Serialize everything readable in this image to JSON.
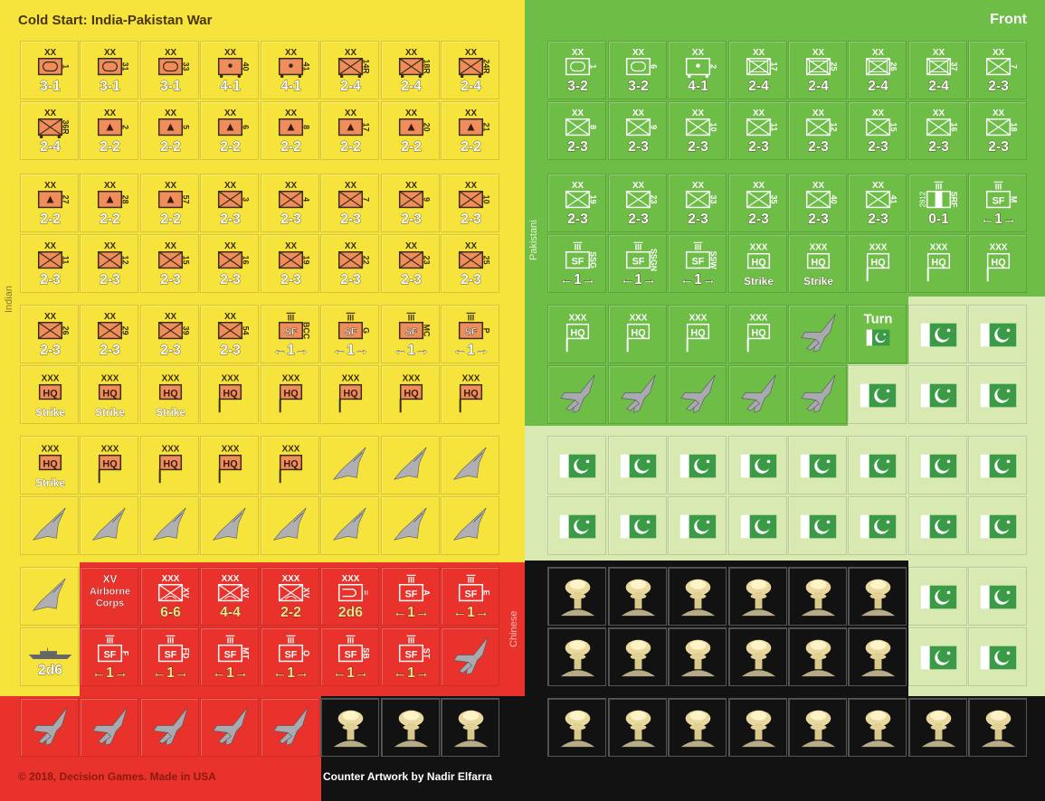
{
  "sheet": {
    "title": "Cold Start: India-Pakistan War",
    "side_label": "Front",
    "indian_label": "Indian",
    "pakistani_label": "Pakistani",
    "chinese_label": "Chinese",
    "copyright": "© 2018, Decision Games. Made in USA",
    "credit": "Counter Artwork by Nadir Elfarra"
  },
  "colors": {
    "india": "#f6e43c",
    "china": "#e8322b",
    "pakistan": "#6dbd47",
    "pakistan_light": "#d8e9b2",
    "nuke": "#121212",
    "india_symbol": "#ef8d5d",
    "ink": "#3a2a10",
    "china_strength": "#f7e18e"
  },
  "left_rows": [
    [
      {
        "s": "XX",
        "sym": "armor",
        "id": "1",
        "str": "3-1"
      },
      {
        "s": "XX",
        "sym": "armor",
        "id": "31",
        "str": "3-1"
      },
      {
        "s": "XX",
        "sym": "armor",
        "id": "33",
        "str": "3-1"
      },
      {
        "s": "XX",
        "sym": "motart",
        "id": "40",
        "str": "4-1"
      },
      {
        "s": "XX",
        "sym": "motart",
        "id": "41",
        "str": "4-1"
      },
      {
        "s": "XX",
        "sym": "motinf",
        "id": "14R",
        "str": "2-4"
      },
      {
        "s": "XX",
        "sym": "motinf",
        "id": "18R",
        "str": "2-4"
      },
      {
        "s": "XX",
        "sym": "motinf",
        "id": "24R",
        "str": "2-4"
      }
    ],
    [
      {
        "s": "XX",
        "sym": "motinf",
        "id": "36R",
        "str": "2-4"
      },
      {
        "s": "XX",
        "sym": "mountain",
        "id": "2",
        "str": "2-2"
      },
      {
        "s": "XX",
        "sym": "mountain",
        "id": "5",
        "str": "2-2"
      },
      {
        "s": "XX",
        "sym": "mountain",
        "id": "6",
        "str": "2-2"
      },
      {
        "s": "XX",
        "sym": "mountain",
        "id": "8",
        "str": "2-2"
      },
      {
        "s": "XX",
        "sym": "mountain",
        "id": "17",
        "str": "2-2"
      },
      {
        "s": "XX",
        "sym": "mountain",
        "id": "20",
        "str": "2-2"
      },
      {
        "s": "XX",
        "sym": "mountain",
        "id": "21",
        "str": "2-2"
      }
    ],
    [
      {
        "s": "XX",
        "sym": "mountain",
        "id": "27",
        "str": "2-2"
      },
      {
        "s": "XX",
        "sym": "mountain",
        "id": "28",
        "str": "2-2"
      },
      {
        "s": "XX",
        "sym": "mountain",
        "id": "57",
        "str": "2-2"
      },
      {
        "s": "XX",
        "sym": "inf",
        "id": "3",
        "str": "2-3"
      },
      {
        "s": "XX",
        "sym": "inf",
        "id": "4",
        "str": "2-3"
      },
      {
        "s": "XX",
        "sym": "inf",
        "id": "7",
        "str": "2-3"
      },
      {
        "s": "XX",
        "sym": "inf",
        "id": "9",
        "str": "2-3"
      },
      {
        "s": "XX",
        "sym": "inf",
        "id": "10",
        "str": "2-3"
      }
    ],
    [
      {
        "s": "XX",
        "sym": "inf",
        "id": "11",
        "str": "2-3"
      },
      {
        "s": "XX",
        "sym": "inf",
        "id": "12",
        "str": "2-3"
      },
      {
        "s": "XX",
        "sym": "inf",
        "id": "15",
        "str": "2-3"
      },
      {
        "s": "XX",
        "sym": "inf",
        "id": "16",
        "str": "2-3"
      },
      {
        "s": "XX",
        "sym": "inf",
        "id": "19",
        "str": "2-3"
      },
      {
        "s": "XX",
        "sym": "inf",
        "id": "22",
        "str": "2-3"
      },
      {
        "s": "XX",
        "sym": "inf",
        "id": "23",
        "str": "2-3"
      },
      {
        "s": "XX",
        "sym": "inf",
        "id": "25",
        "str": "2-3"
      }
    ],
    [
      {
        "s": "XX",
        "sym": "inf",
        "id": "26",
        "str": "2-3"
      },
      {
        "s": "XX",
        "sym": "inf",
        "id": "29",
        "str": "2-3"
      },
      {
        "s": "XX",
        "sym": "inf",
        "id": "39",
        "str": "2-3"
      },
      {
        "s": "XX",
        "sym": "inf",
        "id": "54",
        "str": "2-3"
      },
      {
        "s": "III",
        "sym": "sf",
        "id": "BCC",
        "str": "←1→"
      },
      {
        "s": "III",
        "sym": "sf",
        "id": "G",
        "str": "←1→"
      },
      {
        "s": "III",
        "sym": "sf",
        "id": "MC",
        "str": "←1→"
      },
      {
        "s": "III",
        "sym": "sf",
        "id": "P",
        "str": "←1→"
      }
    ],
    [
      {
        "s": "XXX",
        "sym": "hq",
        "str": "Strike"
      },
      {
        "s": "XXX",
        "sym": "hq",
        "str": "Strike"
      },
      {
        "s": "XXX",
        "sym": "hq",
        "str": "Strike"
      },
      {
        "s": "XXX",
        "sym": "hqflag"
      },
      {
        "s": "XXX",
        "sym": "hqflag"
      },
      {
        "s": "XXX",
        "sym": "hqflag"
      },
      {
        "s": "XXX",
        "sym": "hqflag"
      },
      {
        "s": "XXX",
        "sym": "hqflag"
      }
    ],
    [
      {
        "s": "XXX",
        "sym": "hq",
        "str": "Strike"
      },
      {
        "s": "XXX",
        "sym": "hqflag"
      },
      {
        "s": "XXX",
        "sym": "hqflag"
      },
      {
        "s": "XXX",
        "sym": "hqflag"
      },
      {
        "s": "XXX",
        "sym": "hqflag"
      },
      {
        "sym": "delta"
      },
      {
        "sym": "delta"
      },
      {
        "sym": "delta"
      }
    ],
    [
      {
        "sym": "delta"
      },
      {
        "sym": "delta"
      },
      {
        "sym": "delta"
      },
      {
        "sym": "delta"
      },
      {
        "sym": "delta"
      },
      {
        "sym": "delta"
      },
      {
        "sym": "delta"
      },
      {
        "sym": "delta"
      }
    ],
    [
      {
        "sym": "delta"
      },
      {
        "side": "china",
        "sym": "label",
        "lines": [
          "XV",
          "Airborne",
          "Corps"
        ]
      },
      {
        "side": "china",
        "s": "XXX",
        "sym": "airborne",
        "id": "XV",
        "str": "6-6"
      },
      {
        "side": "china",
        "s": "XXX",
        "sym": "airborne",
        "id": "XV",
        "str": "4-4"
      },
      {
        "side": "china",
        "s": "XXX",
        "sym": "airborne",
        "id": "XV",
        "str": "2-2"
      },
      {
        "side": "china",
        "s": "XXX",
        "sym": "airmobile",
        "id": "=",
        "str": "2d6"
      },
      {
        "side": "china",
        "s": "III",
        "sym": "sf",
        "id": "A",
        "str": "←1→"
      },
      {
        "side": "china",
        "s": "III",
        "sym": "sf",
        "id": "E",
        "str": "←1→"
      }
    ],
    [
      {
        "sym": "ship",
        "str": "2d6"
      },
      {
        "side": "china",
        "s": "III",
        "sym": "sf",
        "id": "F",
        "str": "←1→"
      },
      {
        "side": "china",
        "s": "III",
        "sym": "sf",
        "id": "FD",
        "str": "←1→"
      },
      {
        "side": "china",
        "s": "III",
        "sym": "sf",
        "id": "MT",
        "str": "←1→"
      },
      {
        "side": "china",
        "s": "III",
        "sym": "sf",
        "id": "O",
        "str": "←1→"
      },
      {
        "side": "china",
        "s": "III",
        "sym": "sf",
        "id": "SB",
        "str": "←1→"
      },
      {
        "side": "china",
        "s": "III",
        "sym": "sf",
        "id": "ST",
        "str": "←1→"
      },
      {
        "side": "china",
        "sym": "jet"
      }
    ],
    [
      {
        "side": "china",
        "sym": "jet"
      },
      {
        "side": "china",
        "sym": "jet"
      },
      {
        "side": "china",
        "sym": "jet"
      },
      {
        "side": "china",
        "sym": "jet"
      },
      {
        "side": "china",
        "sym": "jet"
      },
      {
        "side": "nuke",
        "sym": "nuke"
      },
      {
        "side": "nuke",
        "sym": "nuke"
      },
      {
        "side": "nuke",
        "sym": "nuke"
      }
    ]
  ],
  "right_rows": [
    [
      {
        "s": "XX",
        "sym": "armor",
        "id": "1",
        "str": "3-2"
      },
      {
        "s": "XX",
        "sym": "armor",
        "id": "6",
        "str": "3-2"
      },
      {
        "s": "XX",
        "sym": "motart",
        "id": "2",
        "str": "4-1"
      },
      {
        "s": "XX",
        "sym": "arminf",
        "id": "17",
        "str": "2-4"
      },
      {
        "s": "XX",
        "sym": "arminf",
        "id": "25",
        "str": "2-4"
      },
      {
        "s": "XX",
        "sym": "arminf",
        "id": "26",
        "str": "2-4"
      },
      {
        "s": "XX",
        "sym": "arminf",
        "id": "37",
        "str": "2-4"
      },
      {
        "s": "XX",
        "sym": "inf",
        "id": "7",
        "str": "2-3"
      }
    ],
    [
      {
        "s": "XX",
        "sym": "inf",
        "id": "8",
        "str": "2-3"
      },
      {
        "s": "XX",
        "sym": "inf",
        "id": "9",
        "str": "2-3"
      },
      {
        "s": "XX",
        "sym": "inf",
        "id": "10",
        "str": "2-3"
      },
      {
        "s": "XX",
        "sym": "inf",
        "id": "11",
        "str": "2-3"
      },
      {
        "s": "XX",
        "sym": "inf",
        "id": "12",
        "str": "2-3"
      },
      {
        "s": "XX",
        "sym": "inf",
        "id": "15",
        "str": "2-3"
      },
      {
        "s": "XX",
        "sym": "inf",
        "id": "16",
        "str": "2-3"
      },
      {
        "s": "XX",
        "sym": "inf",
        "id": "18",
        "str": "2-3"
      }
    ],
    [
      {
        "s": "XX",
        "sym": "inf",
        "id": "19",
        "str": "2-3"
      },
      {
        "s": "XX",
        "sym": "inf",
        "id": "23",
        "str": "2-3"
      },
      {
        "s": "XX",
        "sym": "inf",
        "id": "33",
        "str": "2-3"
      },
      {
        "s": "XX",
        "sym": "inf",
        "id": "35",
        "str": "2-3"
      },
      {
        "s": "XX",
        "sym": "inf",
        "id": "40",
        "str": "2-3"
      },
      {
        "s": "XX",
        "sym": "inf",
        "id": "41",
        "str": "2-3"
      },
      {
        "s": "III",
        "sym": "srf",
        "id": "SRF",
        "side_note": "2812",
        "str": "0-1"
      },
      {
        "s": "III",
        "sym": "sf",
        "id": "M",
        "str": "←1→"
      }
    ],
    [
      {
        "s": "III",
        "sym": "sf",
        "id": "SSG",
        "str": "←1→"
      },
      {
        "s": "III",
        "sym": "sf",
        "id": "SSGN",
        "str": "←1→"
      },
      {
        "s": "III",
        "sym": "sf",
        "id": "SSW",
        "str": "←1→"
      },
      {
        "s": "XXX",
        "sym": "hq",
        "str": "Strike"
      },
      {
        "s": "XXX",
        "sym": "hq",
        "str": "Strike"
      },
      {
        "s": "XXX",
        "sym": "hqflag"
      },
      {
        "s": "XXX",
        "sym": "hqflag"
      },
      {
        "s": "XXX",
        "sym": "hqflag"
      }
    ],
    [
      {
        "s": "XXX",
        "sym": "hqflag"
      },
      {
        "s": "XXX",
        "sym": "hqflag"
      },
      {
        "s": "XXX",
        "sym": "hqflag"
      },
      {
        "s": "XXX",
        "sym": "hqflag"
      },
      {
        "sym": "jet"
      },
      {
        "sym": "turn",
        "str": "Turn"
      },
      {
        "side": "light",
        "sym": "flag"
      },
      {
        "side": "light",
        "sym": "flag"
      }
    ],
    [
      {
        "sym": "jet"
      },
      {
        "sym": "jet"
      },
      {
        "sym": "jet"
      },
      {
        "sym": "jet"
      },
      {
        "sym": "jet"
      },
      {
        "side": "light",
        "sym": "flag"
      },
      {
        "side": "light",
        "sym": "flag"
      },
      {
        "side": "light",
        "sym": "flag"
      }
    ],
    [
      {
        "side": "light",
        "sym": "flag"
      },
      {
        "side": "light",
        "sym": "flag"
      },
      {
        "side": "light",
        "sym": "flag"
      },
      {
        "side": "light",
        "sym": "flag"
      },
      {
        "side": "light",
        "sym": "flag"
      },
      {
        "side": "light",
        "sym": "flag"
      },
      {
        "side": "light",
        "sym": "flag"
      },
      {
        "side": "light",
        "sym": "flag"
      }
    ],
    [
      {
        "side": "light",
        "sym": "flag"
      },
      {
        "side": "light",
        "sym": "flag"
      },
      {
        "side": "light",
        "sym": "flag"
      },
      {
        "side": "light",
        "sym": "flag"
      },
      {
        "side": "light",
        "sym": "flag"
      },
      {
        "side": "light",
        "sym": "flag"
      },
      {
        "side": "light",
        "sym": "flag"
      },
      {
        "side": "light",
        "sym": "flag"
      }
    ],
    [
      {
        "side": "nuke",
        "sym": "nuke"
      },
      {
        "side": "nuke",
        "sym": "nuke"
      },
      {
        "side": "nuke",
        "sym": "nuke"
      },
      {
        "side": "nuke",
        "sym": "nuke"
      },
      {
        "side": "nuke",
        "sym": "nuke"
      },
      {
        "side": "nuke",
        "sym": "nuke"
      },
      {
        "side": "light",
        "sym": "flag"
      },
      {
        "side": "light",
        "sym": "flag"
      }
    ],
    [
      {
        "side": "nuke",
        "sym": "nuke"
      },
      {
        "side": "nuke",
        "sym": "nuke"
      },
      {
        "side": "nuke",
        "sym": "nuke"
      },
      {
        "side": "nuke",
        "sym": "nuke"
      },
      {
        "side": "nuke",
        "sym": "nuke"
      },
      {
        "side": "nuke",
        "sym": "nuke"
      },
      {
        "side": "light",
        "sym": "flag"
      },
      {
        "side": "light",
        "sym": "flag"
      }
    ],
    [
      {
        "side": "nuke",
        "sym": "nuke"
      },
      {
        "side": "nuke",
        "sym": "nuke"
      },
      {
        "side": "nuke",
        "sym": "nuke"
      },
      {
        "side": "nuke",
        "sym": "nuke"
      },
      {
        "side": "nuke",
        "sym": "nuke"
      },
      {
        "side": "nuke",
        "sym": "nuke"
      },
      {
        "side": "nuke",
        "sym": "nuke"
      },
      {
        "side": "nuke",
        "sym": "nuke"
      }
    ]
  ]
}
